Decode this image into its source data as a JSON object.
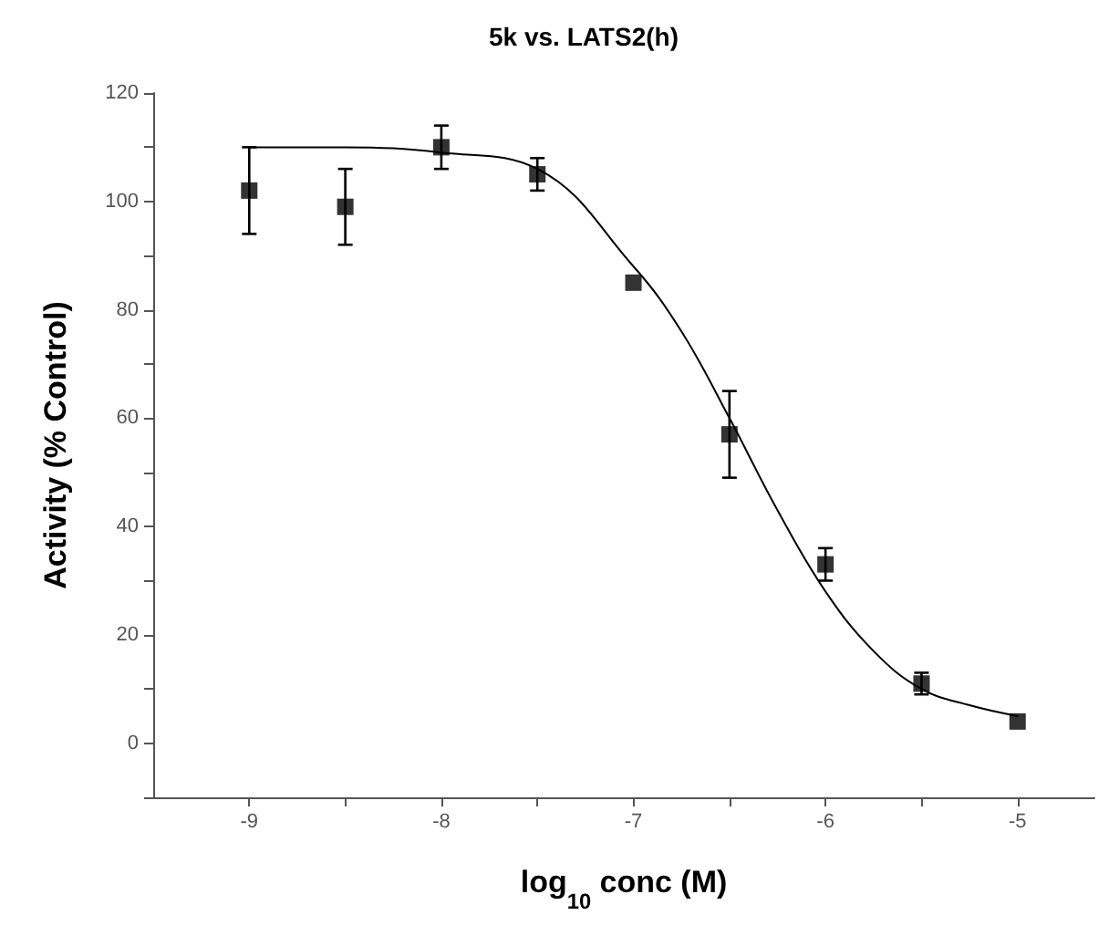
{
  "chart_data": {
    "type": "scatter",
    "title": "5k vs. LATS2(h)",
    "xlabel": "log$_{10}$ conc (M)",
    "ylabel": "Activity (% Control)",
    "xlim": [
      -9.5,
      -4.6
    ],
    "xticks": [
      -9,
      {
        "value": -8.5,
        "label": null
      },
      -8,
      {
        "value": -7.5,
        "label": null
      },
      -7,
      {
        "value": -6.5,
        "label": null
      },
      -6,
      {
        "value": -5.5,
        "label": null
      },
      -5
    ],
    "ylim": [
      -10,
      120
    ],
    "yticks": [
      {
        "value": -10,
        "label": null
      },
      0,
      {
        "value": 10,
        "label": null
      },
      20,
      {
        "value": 30,
        "label": null
      },
      40,
      {
        "value": 50,
        "label": null
      },
      60,
      {
        "value": 70,
        "label": null
      },
      80,
      {
        "value": 90,
        "label": null
      },
      100,
      {
        "value": 110,
        "label": null
      },
      120
    ],
    "grid": false,
    "series": [
      {
        "type": "scatter",
        "color": "#000000",
        "marker": "square",
        "x": [
          -9,
          -8.5,
          -8,
          -7.5,
          -7,
          -6.5,
          -6,
          -5.5,
          -5
        ],
        "values": [
          102,
          99,
          110,
          105,
          85,
          57,
          33,
          11,
          4
        ],
        "errors": [
          8,
          7,
          4,
          3,
          null,
          8,
          3,
          2,
          null
        ]
      },
      {
        "type": "line",
        "color": "#000000",
        "marker": "none",
        "line_style": "solid",
        "x": [
          -9,
          -8.5,
          -8,
          -7.5,
          -7,
          -6.75,
          -6.5,
          -6.25,
          -6,
          -5.75,
          -5.5,
          -5.25,
          -5
        ],
        "values": [
          110,
          110,
          109,
          106,
          88,
          76,
          60,
          43,
          28,
          17,
          10,
          7,
          5
        ]
      }
    ]
  }
}
